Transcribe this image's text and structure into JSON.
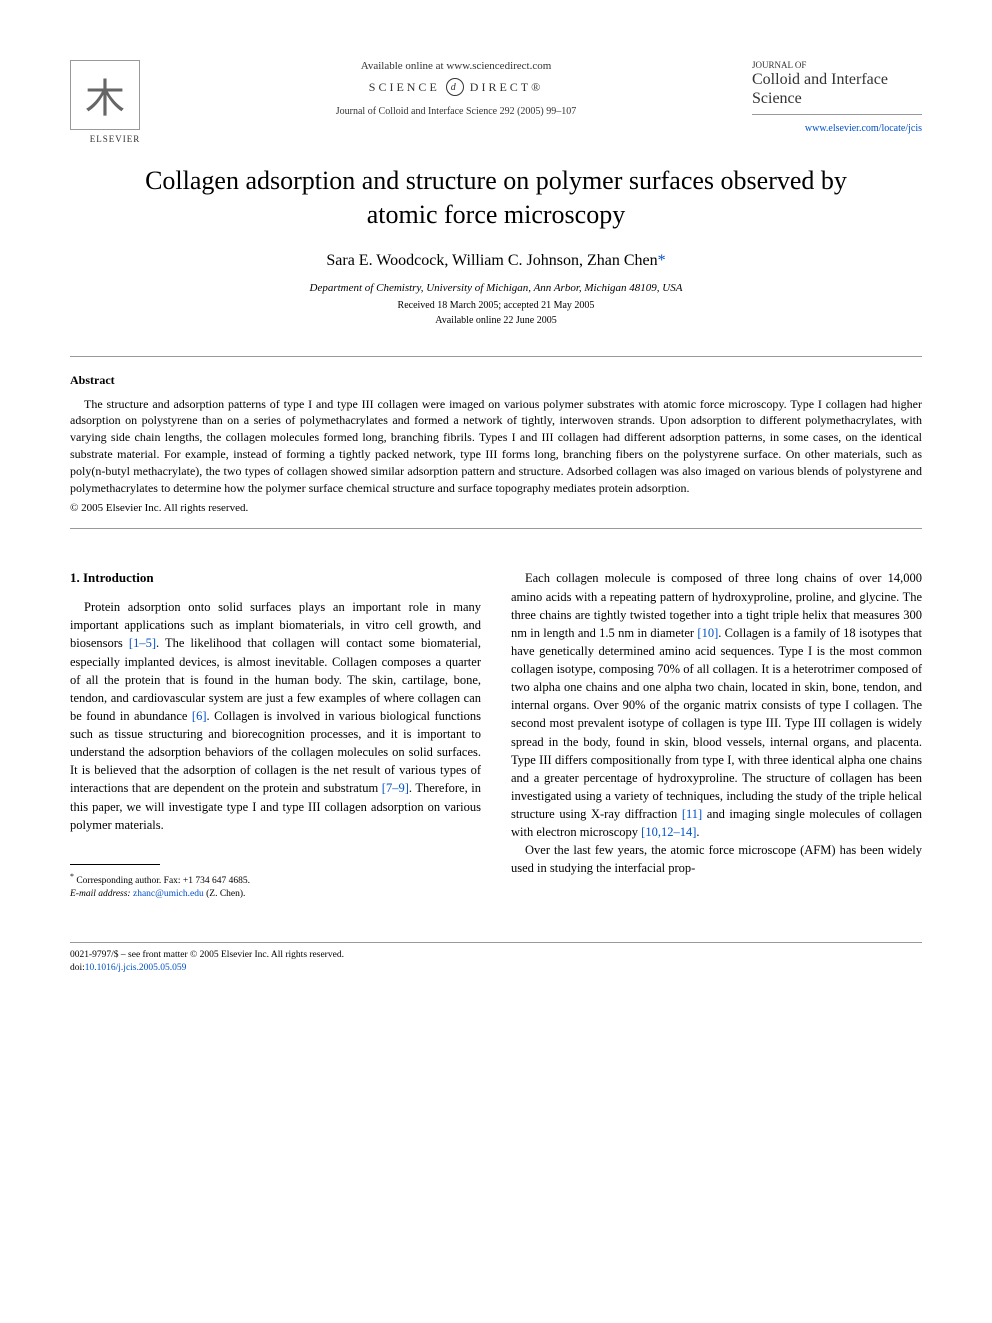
{
  "header": {
    "elsevier": "ELSEVIER",
    "available_online": "Available online at www.sciencedirect.com",
    "science_direct": "SCIENCE",
    "science_direct2": "DIRECT®",
    "journal_ref": "Journal of Colloid and Interface Science 292 (2005) 99–107",
    "journal_of": "JOURNAL OF",
    "journal_name": "Colloid and Interface Science",
    "journal_link": "www.elsevier.com/locate/jcis"
  },
  "title": "Collagen adsorption and structure on polymer surfaces observed by atomic force microscopy",
  "authors": {
    "a1": "Sara E. Woodcock",
    "a2": "William C. Johnson",
    "a3": "Zhan Chen",
    "sep": ", "
  },
  "affiliation": "Department of Chemistry, University of Michigan, Ann Arbor, Michigan 48109, USA",
  "dates": {
    "received": "Received 18 March 2005; accepted 21 May 2005",
    "online": "Available online 22 June 2005"
  },
  "abstract": {
    "heading": "Abstract",
    "text": "The structure and adsorption patterns of type I and type III collagen were imaged on various polymer substrates with atomic force microscopy. Type I collagen had higher adsorption on polystyrene than on a series of polymethacrylates and formed a network of tightly, interwoven strands. Upon adsorption to different polymethacrylates, with varying side chain lengths, the collagen molecules formed long, branching fibrils. Types I and III collagen had different adsorption patterns, in some cases, on the identical substrate material. For example, instead of forming a tightly packed network, type III forms long, branching fibers on the polystyrene surface. On other materials, such as poly(n-butyl methacrylate), the two types of collagen showed similar adsorption pattern and structure. Adsorbed collagen was also imaged on various blends of polystyrene and polymethacrylates to determine how the polymer surface chemical structure and surface topography mediates protein adsorption.",
    "copyright": "© 2005 Elsevier Inc. All rights reserved."
  },
  "body": {
    "intro_heading": "1. Introduction",
    "p1a": "Protein adsorption onto solid surfaces plays an important role in many important applications such as implant biomaterials, in vitro cell growth, and biosensors ",
    "c1": "[1–5]",
    "p1b": ". The likelihood that collagen will contact some biomaterial, especially implanted devices, is almost inevitable. Collagen composes a quarter of all the protein that is found in the human body. The skin, cartilage, bone, tendon, and cardiovascular system are just a few examples of where collagen can be found in abundance ",
    "c2": "[6]",
    "p1c": ". Collagen is involved in various biological functions such as tissue structuring and biorecognition processes, and it is important to understand the adsorption behaviors of the collagen molecules on solid surfaces. It is believed that the adsorption of collagen is the net result of various types of interactions that are dependent on the protein and substratum ",
    "c3": "[7–9]",
    "p1d": ". Therefore, in this paper, we will investigate type I and type III collagen adsorption on various polymer materials.",
    "p2a": "Each collagen molecule is composed of three long chains of over 14,000 amino acids with a repeating pattern of hydroxyproline, proline, and glycine. The three chains are tightly twisted together into a tight triple helix that measures 300 nm in length and 1.5 nm in diameter ",
    "c4": "[10]",
    "p2b": ". Collagen is a family of 18 isotypes that have genetically determined amino acid sequences. Type I is the most common collagen isotype, composing 70% of all collagen. It is a heterotrimer composed of two alpha one chains and one alpha two chain, located in skin, bone, tendon, and internal organs. Over 90% of the organic matrix consists of type I collagen. The second most prevalent isotype of collagen is type III. Type III collagen is widely spread in the body, found in skin, blood vessels, internal organs, and placenta. Type III differs compositionally from type I, with three identical alpha one chains and a greater percentage of hydroxyproline. The structure of collagen has been investigated using a variety of techniques, including the study of the triple helical structure using X-ray diffraction ",
    "c5": "[11]",
    "p2c": " and imaging single molecules of collagen with electron microscopy ",
    "c6": "[10,12–14]",
    "p2d": ".",
    "p3": "Over the last few years, the atomic force microscope (AFM) has been widely used in studying the interfacial prop-"
  },
  "footnote": {
    "corr_label": "Corresponding author. Fax: +1 734 647 4685.",
    "email_label": "E-mail address:",
    "email": "zhanc@umich.edu",
    "email_paren": "(Z. Chen)."
  },
  "bottom": {
    "issn": "0021-9797/$ – see front matter © 2005 Elsevier Inc. All rights reserved.",
    "doi_label": "doi:",
    "doi": "10.1016/j.jcis.2005.05.059"
  },
  "colors": {
    "link": "#0050c8",
    "text": "#000000",
    "rule": "#999999"
  }
}
